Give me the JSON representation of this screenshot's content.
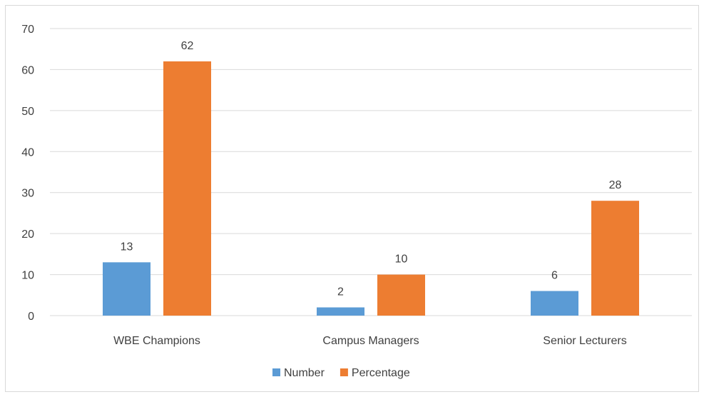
{
  "chart_data": {
    "type": "bar",
    "categories": [
      "WBE Champions",
      "Campus Managers",
      "Senior Lecturers"
    ],
    "series": [
      {
        "name": "Number",
        "values": [
          13,
          2,
          6
        ],
        "color": "#5b9bd5"
      },
      {
        "name": "Percentage",
        "values": [
          62,
          10,
          28
        ],
        "color": "#ed7d31"
      }
    ],
    "ylim": [
      0,
      70
    ],
    "yticks": [
      0,
      10,
      20,
      30,
      40,
      50,
      60,
      70
    ],
    "grid": true,
    "data_labels": true,
    "legend_position": "bottom"
  }
}
